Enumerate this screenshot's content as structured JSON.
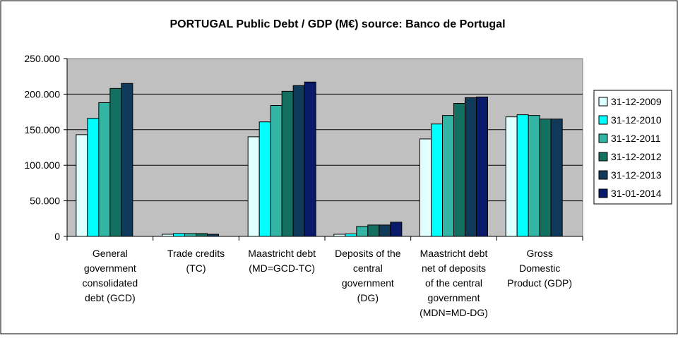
{
  "chart_data": {
    "type": "bar",
    "title": "PORTUGAL Public Debt / GDP (M€) source: Banco de Portugal",
    "xlabel": "",
    "ylabel": "",
    "ylim": [
      0,
      250000
    ],
    "yticks": [
      0,
      50000,
      100000,
      150000,
      200000,
      250000
    ],
    "ytick_labels": [
      "0",
      "50.000",
      "100.000",
      "150.000",
      "200.000",
      "250.000"
    ],
    "grid": true,
    "legend_position": "right",
    "categories": [
      [
        "General",
        "government",
        "consolidated",
        "debt (GCD)"
      ],
      [
        "Trade credits",
        "(TC)"
      ],
      [
        "Maastricht debt",
        "(MD=GCD-TC)"
      ],
      [
        "Deposits of the",
        "central",
        "government",
        "(DG)"
      ],
      [
        "Maastricht debt",
        "net of deposits",
        "of the central",
        "government",
        "(MDN=MD-DG)"
      ],
      [
        "Gross",
        "Domestic",
        "Product (GDP)"
      ]
    ],
    "series": [
      {
        "name": "31-12-2009",
        "color": "#e0ffff",
        "values": [
          143000,
          3000,
          140000,
          3000,
          137000,
          168000
        ]
      },
      {
        "name": "31-12-2010",
        "color": "#00ffff",
        "values": [
          166000,
          4000,
          161000,
          3500,
          158000,
          171000
        ]
      },
      {
        "name": "31-12-2011",
        "color": "#33b5a5",
        "values": [
          188000,
          4000,
          184000,
          14000,
          170000,
          170000
        ]
      },
      {
        "name": "31-12-2012",
        "color": "#137060",
        "values": [
          208000,
          4000,
          204000,
          16000,
          187000,
          165000
        ]
      },
      {
        "name": "31-12-2013",
        "color": "#103a5a",
        "values": [
          215000,
          3000,
          212000,
          16000,
          195000,
          165000
        ]
      },
      {
        "name": "31-01-2014",
        "color": "#0a1a6a",
        "values": [
          0,
          0,
          217000,
          20000,
          196000,
          0
        ]
      }
    ]
  }
}
